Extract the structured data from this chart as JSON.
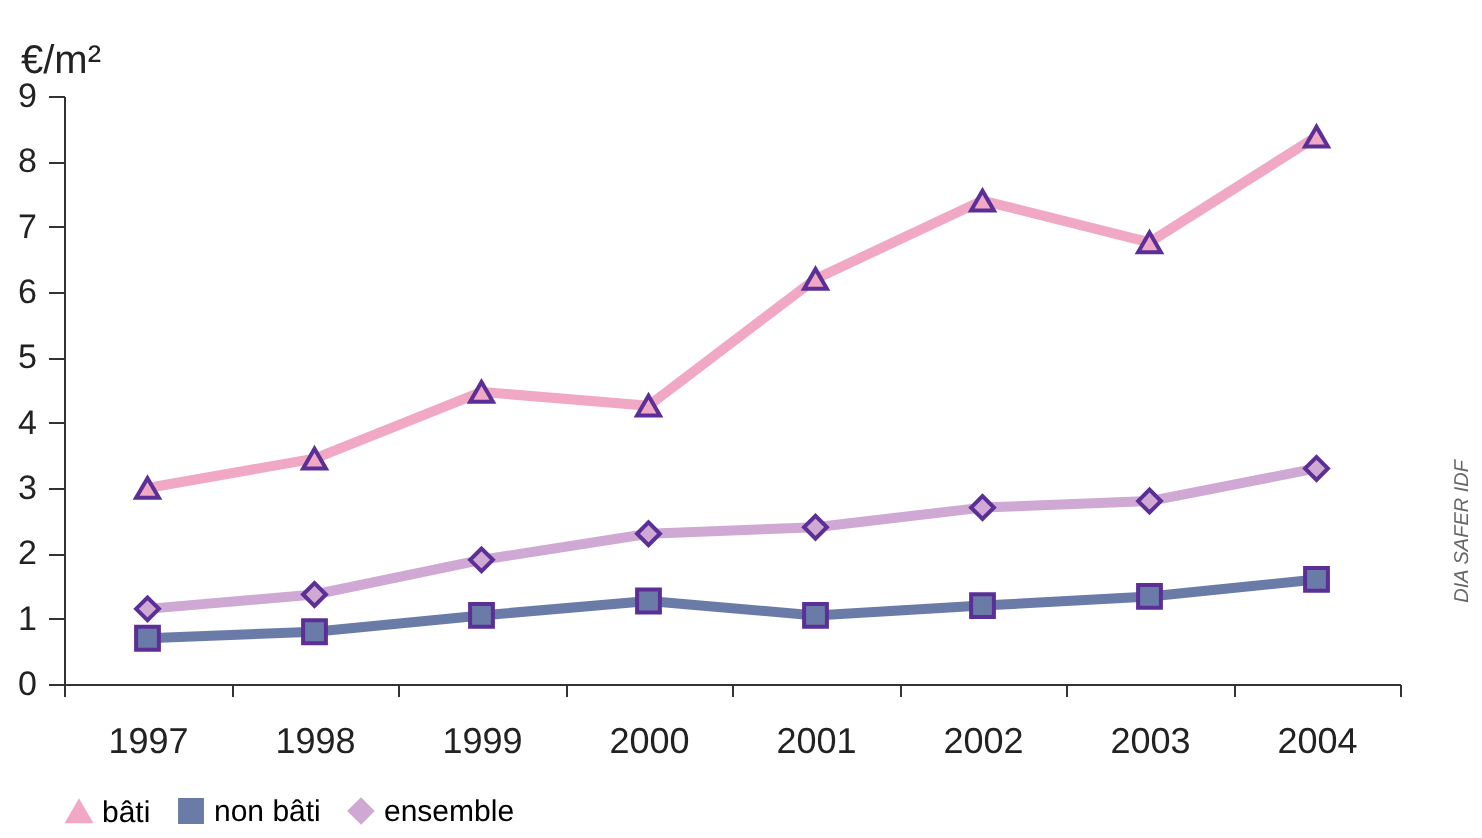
{
  "chart_data": {
    "type": "line",
    "ylabel": "€/m²",
    "categories": [
      "1997",
      "1998",
      "1999",
      "2000",
      "2001",
      "2002",
      "2003",
      "2004"
    ],
    "series": [
      {
        "name": "bâti",
        "color": "#f0a8c4",
        "marker": "triangle",
        "values": [
          3.0,
          3.45,
          4.47,
          4.26,
          6.2,
          7.4,
          6.76,
          8.38
        ]
      },
      {
        "name": "non bâti",
        "color": "#6a7ba8",
        "marker": "square",
        "values": [
          0.7,
          0.8,
          1.05,
          1.27,
          1.05,
          1.2,
          1.34,
          1.6
        ]
      },
      {
        "name": "ensemble",
        "color": "#cfa9d3",
        "marker": "diamond",
        "values": [
          1.15,
          1.37,
          1.9,
          2.3,
          2.4,
          2.7,
          2.8,
          3.3
        ]
      }
    ],
    "ylim": [
      0,
      9
    ],
    "yticks": [
      0,
      1,
      2,
      3,
      4,
      5,
      6,
      7,
      8,
      9
    ],
    "grid": false,
    "legend": "bottom",
    "annotations": [
      "DIA SAFER IDF"
    ]
  }
}
